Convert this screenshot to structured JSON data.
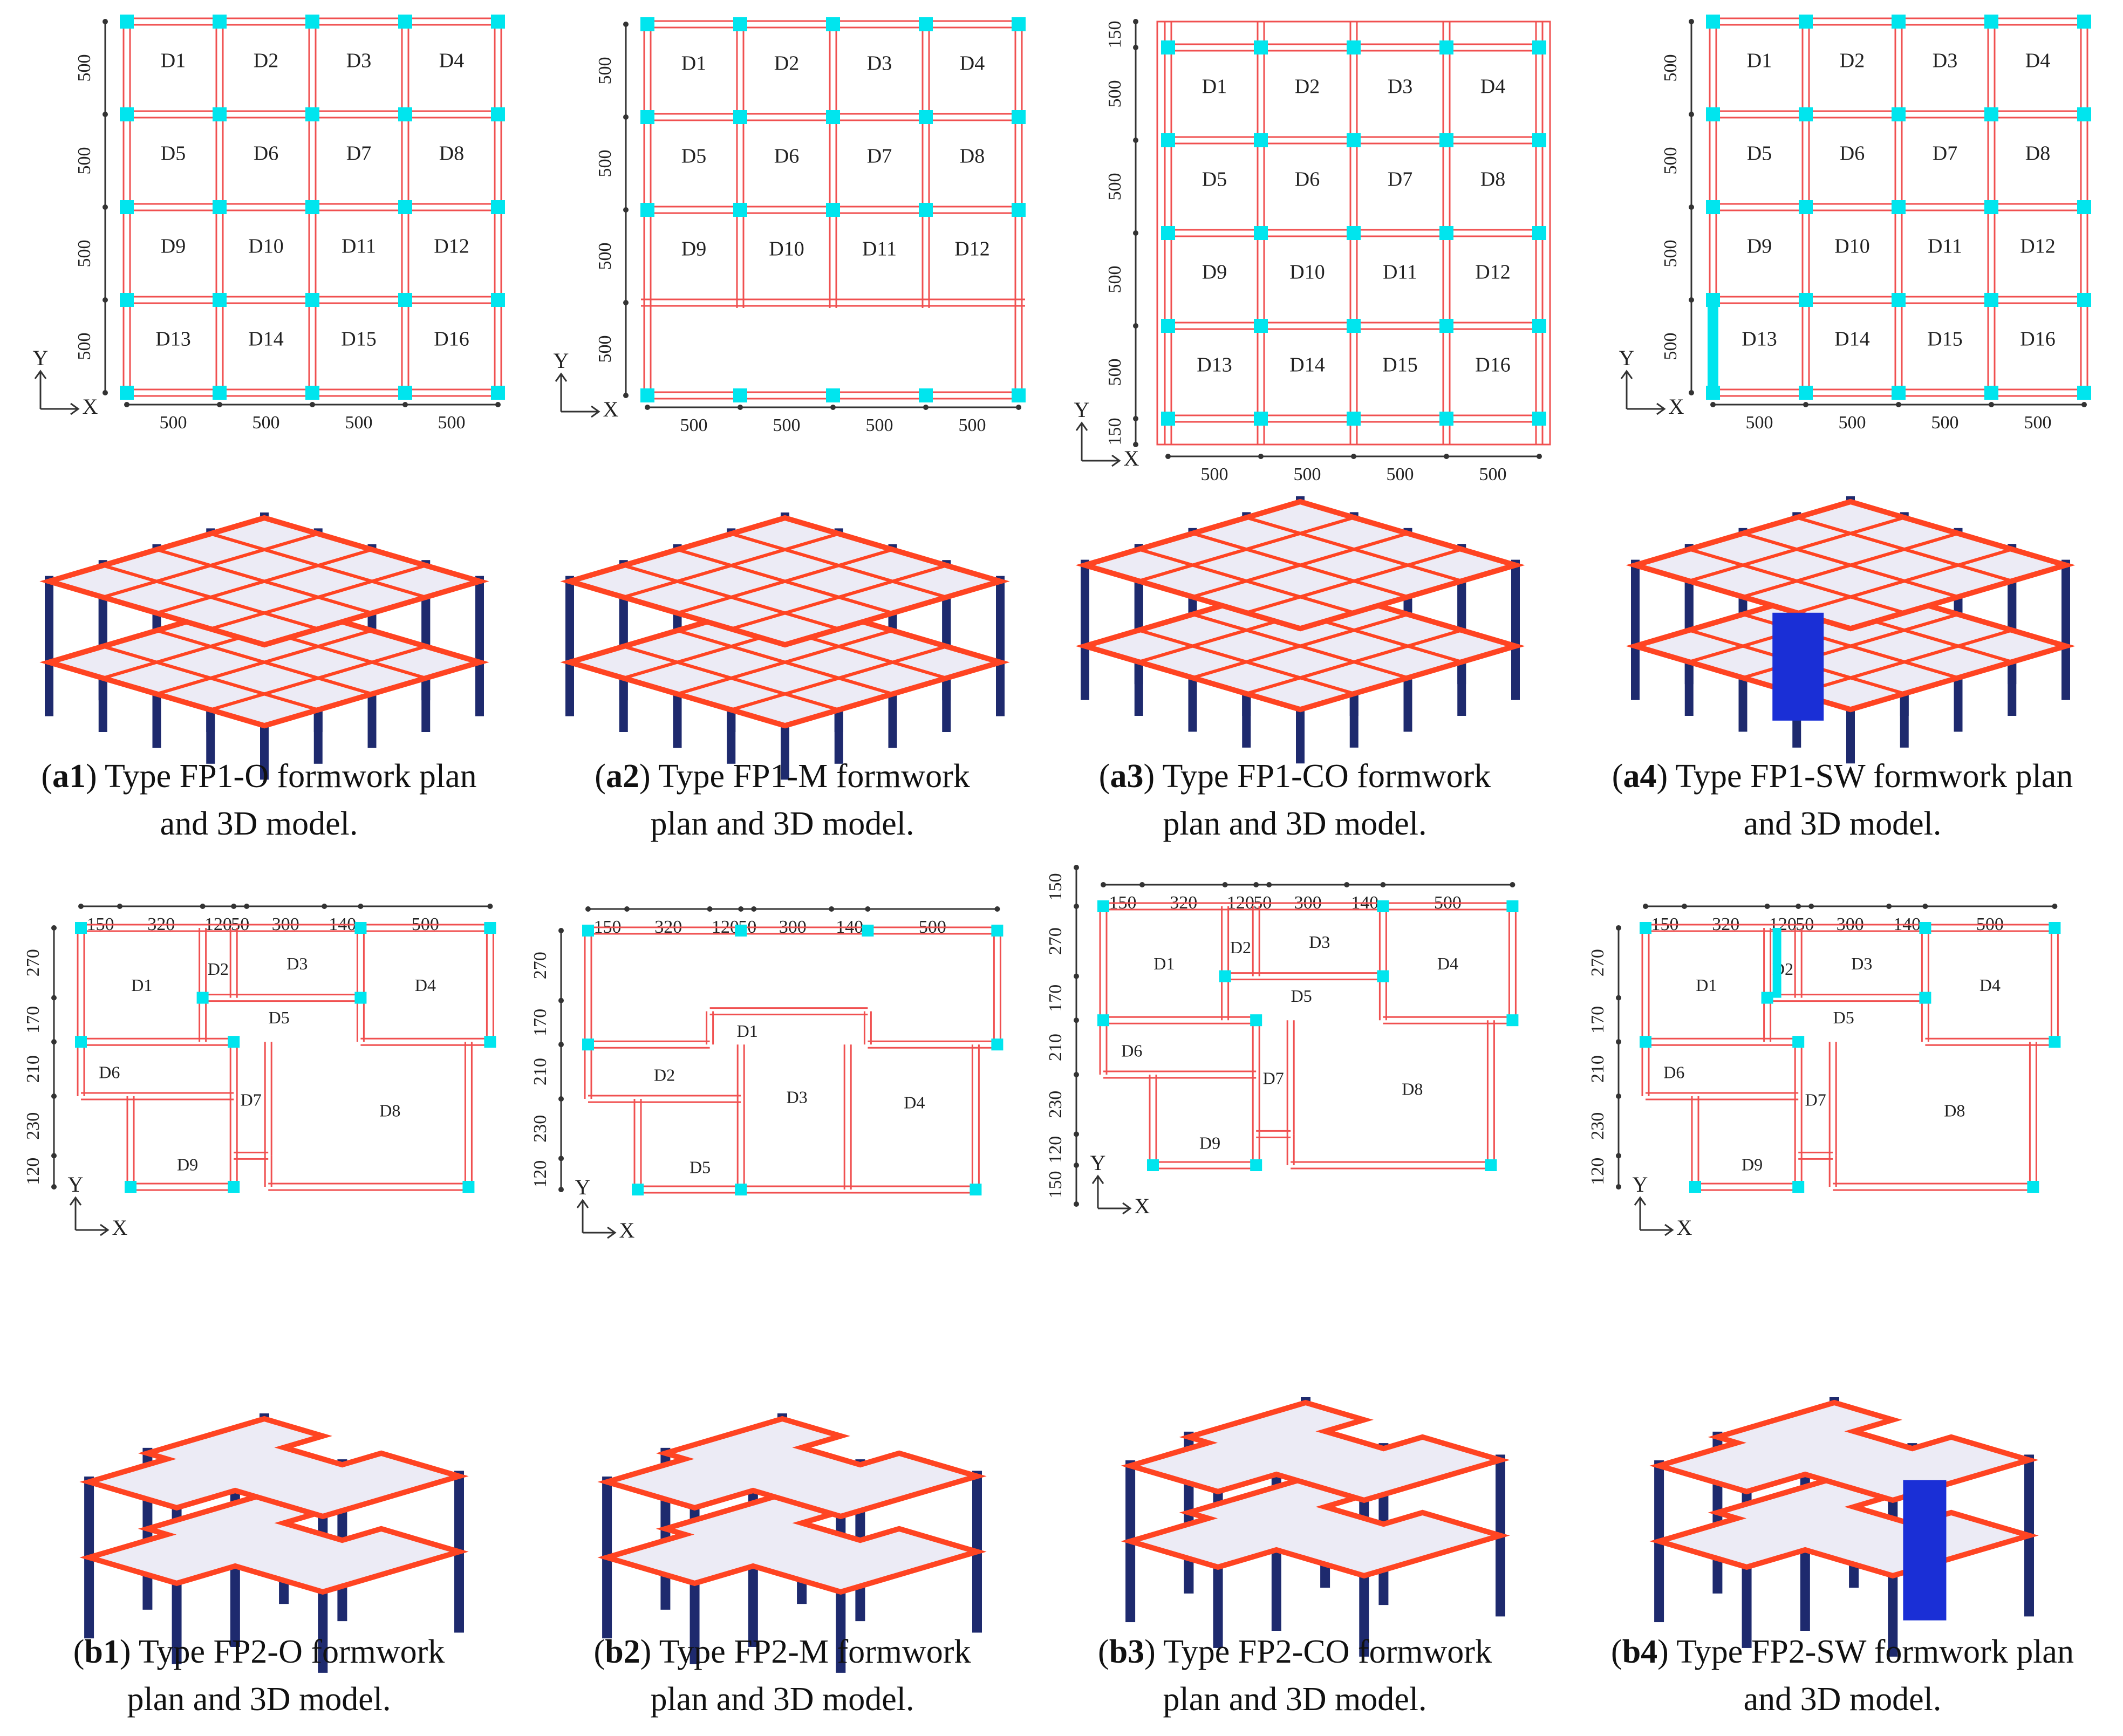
{
  "captions": {
    "a1": {
      "tag": "a1",
      "line1": " Type FP1-O formwork plan",
      "line2": "and 3D model."
    },
    "a2": {
      "tag": "a2",
      "line1": " Type FP1-M formwork",
      "line2": "plan and 3D model."
    },
    "a3": {
      "tag": "a3",
      "line1": " Type FP1-CO formwork",
      "line2": "plan and 3D model."
    },
    "a4": {
      "tag": "a4",
      "line1": " Type FP1-SW formwork plan",
      "line2": "and 3D model."
    },
    "b1": {
      "tag": "b1",
      "line1": " Type FP2-O formwork",
      "line2": "plan and 3D model."
    },
    "b2": {
      "tag": "b2",
      "line1": " Type FP2-M formwork",
      "line2": "plan and 3D model."
    },
    "b3": {
      "tag": "b3",
      "line1": " Type FP2-CO formwork",
      "line2": "plan and 3D model."
    },
    "b4": {
      "tag": "b4",
      "line1": " Type FP2-SW formwork plan",
      "line2": "and 3D model."
    }
  },
  "axes": {
    "x": "X",
    "y": "Y"
  },
  "fp1": {
    "span": "500",
    "edge": "150",
    "slabs_full": [
      "D1",
      "D2",
      "D3",
      "D4",
      "D5",
      "D6",
      "D7",
      "D8",
      "D9",
      "D10",
      "D11",
      "D12",
      "D13",
      "D14",
      "D15",
      "D16"
    ],
    "slabs_m": [
      "D1",
      "D2",
      "D3",
      "D4",
      "D5",
      "D6",
      "D7",
      "D8",
      "D9",
      "D10",
      "D11",
      "D12"
    ]
  },
  "fp2": {
    "top_dims": [
      "150",
      "320",
      "120",
      "50",
      "300",
      "140",
      "500"
    ],
    "side_dims": [
      "270",
      "170",
      "210",
      "230",
      "120"
    ],
    "side_dims_co": [
      "150",
      "270",
      "170",
      "210",
      "230",
      "120",
      "150"
    ],
    "slabs_o": [
      "D1",
      "D2",
      "D3",
      "D4",
      "D5",
      "D6",
      "D7",
      "D8",
      "D9"
    ],
    "slabs_m": [
      "D1",
      "D2",
      "D3",
      "D4",
      "D5"
    ]
  },
  "colors": {
    "beam": "#f05050",
    "column": "#00e5ee",
    "wall": "#1a2fd6",
    "column3d": "#1e2a6e",
    "slab3d": "#ecebf5",
    "beam3d": "#ff4422"
  }
}
